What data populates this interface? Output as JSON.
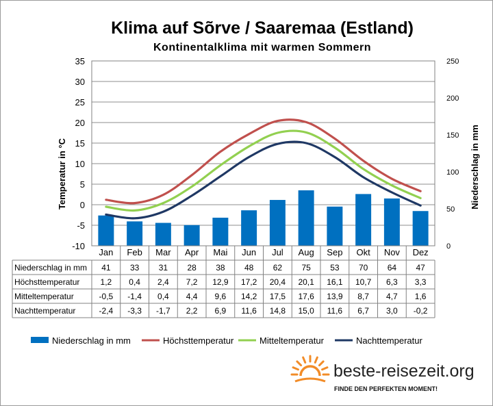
{
  "chart_data": {
    "type": "bar",
    "title": "Klima auf Sõrve / Saaremaa (Estland)",
    "subtitle": "Kontinentalklima  mit warmen Sommern",
    "ylabel": "Temperatur in °C",
    "y2label": "Niederschlag in mm",
    "ylim": [
      -10,
      35
    ],
    "y2lim": [
      0,
      250
    ],
    "yticks": [
      "35",
      "30",
      "25",
      "20",
      "15",
      "10",
      "5",
      "0",
      "-5",
      "-10"
    ],
    "y2ticks": [
      "250",
      "200",
      "150",
      "100",
      "50",
      "0"
    ],
    "categories": [
      "Jan",
      "Feb",
      "Mar",
      "Apr",
      "Mai",
      "Jun",
      "Jul",
      "Aug",
      "Sep",
      "Okt",
      "Nov",
      "Dez"
    ],
    "grid": true,
    "legend": "bottom",
    "series": [
      {
        "name": "Niederschlag in mm",
        "type": "bar",
        "axis": "right",
        "color": "#0070c0",
        "values": [
          41,
          33,
          31,
          28,
          38,
          48,
          62,
          75,
          53,
          70,
          64,
          47
        ],
        "labels": [
          "41",
          "33",
          "31",
          "28",
          "38",
          "48",
          "62",
          "75",
          "53",
          "70",
          "64",
          "47"
        ]
      },
      {
        "name": "Höchsttemperatur",
        "type": "line",
        "axis": "left",
        "color": "#c0504d",
        "values": [
          1.2,
          0.4,
          2.4,
          7.2,
          12.9,
          17.2,
          20.4,
          20.1,
          16.1,
          10.7,
          6.3,
          3.3
        ],
        "labels": [
          "1,2",
          "0,4",
          "2,4",
          "7,2",
          "12,9",
          "17,2",
          "20,4",
          "20,1",
          "16,1",
          "10,7",
          "6,3",
          "3,3"
        ]
      },
      {
        "name": "Mitteltemperatur",
        "type": "line",
        "axis": "left",
        "color": "#92d050",
        "values": [
          -0.5,
          -1.4,
          0.4,
          4.4,
          9.6,
          14.2,
          17.5,
          17.6,
          13.9,
          8.7,
          4.7,
          1.6
        ],
        "labels": [
          "-0,5",
          "-1,4",
          "0,4",
          "4,4",
          "9,6",
          "14,2",
          "17,5",
          "17,6",
          "13,9",
          "8,7",
          "4,7",
          "1,6"
        ]
      },
      {
        "name": "Nachttemperatur",
        "type": "line",
        "axis": "left",
        "color": "#1f3864",
        "values": [
          -2.4,
          -3.3,
          -1.7,
          2.2,
          6.9,
          11.6,
          14.8,
          15.0,
          11.6,
          6.7,
          3.0,
          -0.2
        ],
        "labels": [
          "-2,4",
          "-3,3",
          "-1,7",
          "2,2",
          "6,9",
          "11,6",
          "14,8",
          "15,0",
          "11,6",
          "6,7",
          "3,0",
          "-0,2"
        ]
      }
    ]
  },
  "branding": {
    "site": "beste-reisezeit.org",
    "slogan": "FINDE DEN PERFEKTEN MOMENT!",
    "logo_color": "#f28c28"
  }
}
